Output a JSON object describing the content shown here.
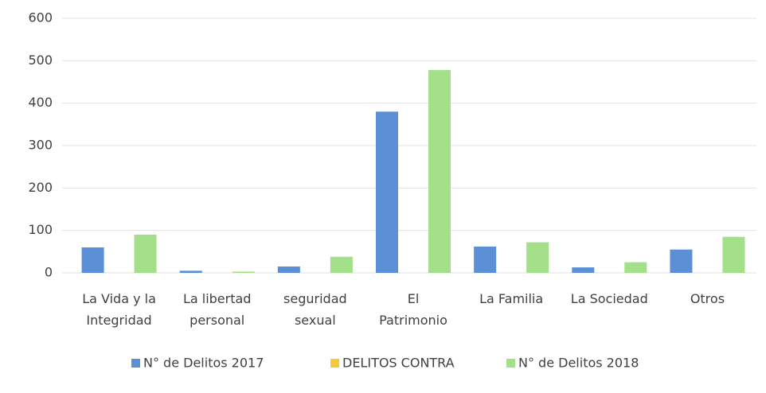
{
  "chart_data": {
    "type": "bar",
    "categories": [
      "La Vida y la\nIntegridad",
      "La libertad\npersonal",
      "seguridad\nsexual",
      "El\nPatrimonio",
      "La Familia",
      "La Sociedad",
      "Otros"
    ],
    "series": [
      {
        "name": "N° de Delitos 2017",
        "color": "#5b8fd6",
        "values": [
          60,
          5,
          15,
          380,
          62,
          13,
          55
        ]
      },
      {
        "name": "DELITOS CONTRA",
        "color": "#f7c83a",
        "values": [
          null,
          null,
          null,
          null,
          null,
          null,
          null
        ]
      },
      {
        "name": "N° de Delitos 2018",
        "color": "#a4e08a",
        "values": [
          90,
          3,
          38,
          478,
          72,
          25,
          85
        ]
      }
    ],
    "ylim": [
      0,
      600
    ],
    "yticks": [
      0,
      100,
      200,
      300,
      400,
      500,
      600
    ],
    "grid": true,
    "legend": "bottom"
  }
}
